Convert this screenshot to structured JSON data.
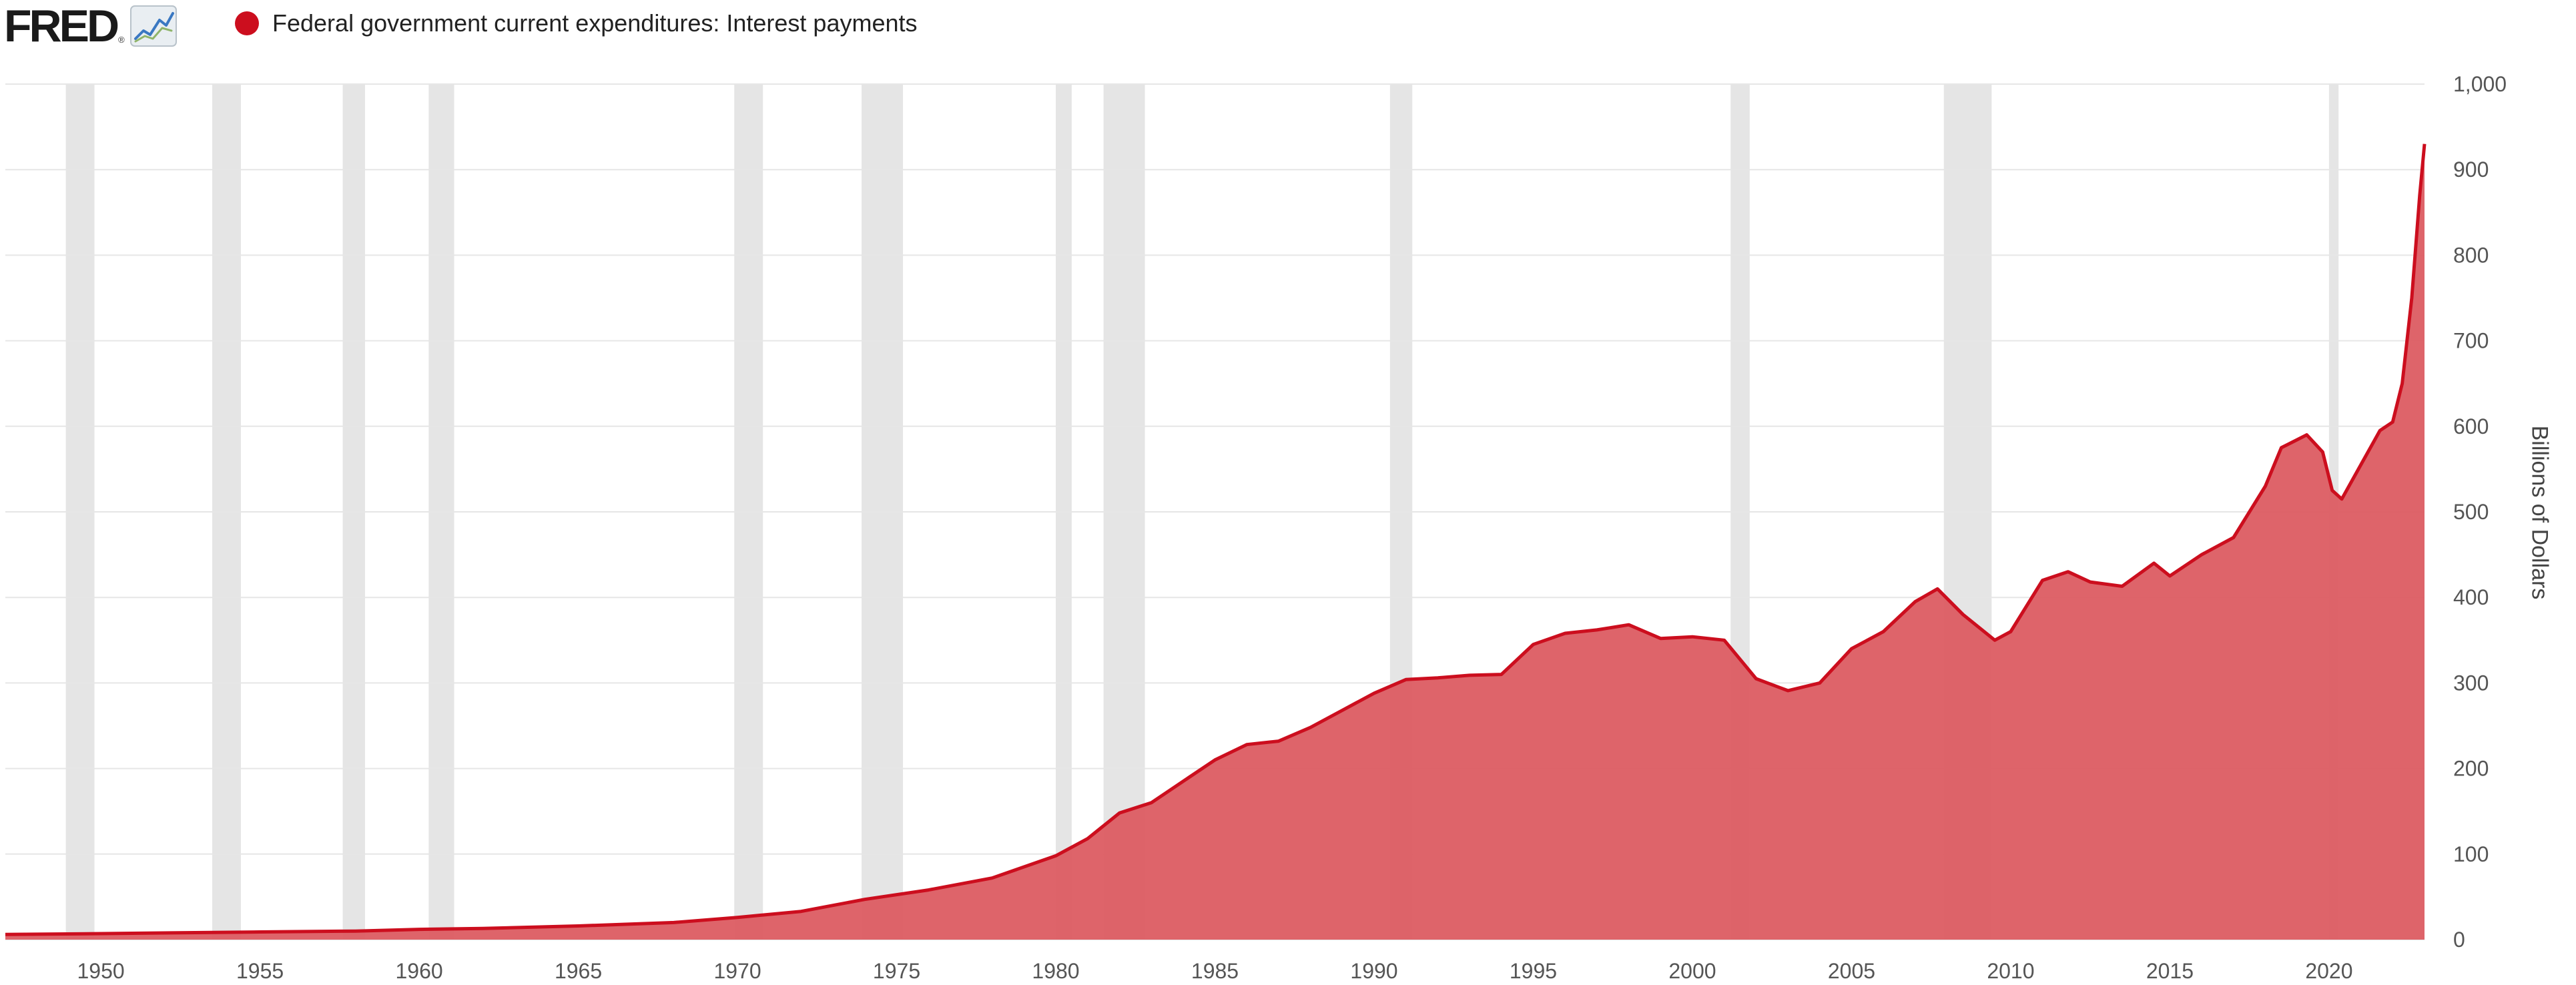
{
  "header": {
    "logo_text": "FRED",
    "logo_reg": "®",
    "logo_icon": "line-chart-icon",
    "legend_label": "Federal government current expenditures: Interest payments"
  },
  "colors": {
    "series": "#cc0e1e",
    "fill": "#dc5c62",
    "recession": "#e5e5e5",
    "grid": "#e6e6e6"
  },
  "chart_data": {
    "type": "area",
    "title": "",
    "xlabel": "",
    "ylabel": "Billions of Dollars",
    "xlim": [
      1947.0,
      2023.0
    ],
    "ylim": [
      0,
      1000
    ],
    "y_ticks": [
      "0",
      "100",
      "200",
      "300",
      "400",
      "500",
      "600",
      "700",
      "800",
      "900",
      "1,000"
    ],
    "y_tick_values": [
      0,
      100,
      200,
      300,
      400,
      500,
      600,
      700,
      800,
      900,
      1000
    ],
    "x_ticks": [
      "1950",
      "1955",
      "1960",
      "1965",
      "1970",
      "1975",
      "1980",
      "1985",
      "1990",
      "1995",
      "2000",
      "2005",
      "2010",
      "2015",
      "2020"
    ],
    "x_tick_values": [
      1950,
      1955,
      1960,
      1965,
      1970,
      1975,
      1980,
      1985,
      1990,
      1995,
      2000,
      2005,
      2010,
      2015,
      2020
    ],
    "grid": true,
    "legend": "top-left",
    "recessions": [
      [
        1948.9,
        1949.8
      ],
      [
        1953.5,
        1954.4
      ],
      [
        1957.6,
        1958.3
      ],
      [
        1960.3,
        1961.1
      ],
      [
        1969.9,
        1970.8
      ],
      [
        1973.9,
        1975.2
      ],
      [
        1980.0,
        1980.5
      ],
      [
        1981.5,
        1982.8
      ],
      [
        1990.5,
        1991.2
      ],
      [
        2001.2,
        2001.8
      ],
      [
        2007.9,
        2009.4
      ],
      [
        2020.0,
        2020.3
      ]
    ],
    "series": [
      {
        "name": "Federal government current expenditures: Interest payments",
        "x": [
          1947.0,
          1950.0,
          1955.0,
          1958.0,
          1960.0,
          1962.0,
          1965.0,
          1968.0,
          1970.0,
          1972.0,
          1974.0,
          1976.0,
          1978.0,
          1980.0,
          1981.0,
          1982.0,
          1983.0,
          1984.0,
          1985.0,
          1986.0,
          1987.0,
          1988.0,
          1989.0,
          1990.0,
          1991.0,
          1992.0,
          1993.0,
          1994.0,
          1995.0,
          1996.0,
          1997.0,
          1998.0,
          1999.0,
          2000.0,
          2001.0,
          2002.0,
          2003.0,
          2004.0,
          2005.0,
          2006.0,
          2007.0,
          2007.7,
          2008.5,
          2009.5,
          2010.0,
          2011.0,
          2011.8,
          2012.5,
          2013.5,
          2014.5,
          2015.0,
          2016.0,
          2017.0,
          2018.0,
          2018.5,
          2019.3,
          2019.8,
          2020.1,
          2020.4,
          2021.0,
          2021.6,
          2022.0,
          2022.3,
          2022.6,
          2022.85,
          2023.0
        ],
        "y": [
          6,
          7,
          9,
          10,
          12,
          13,
          16,
          20,
          26,
          33,
          47,
          58,
          72,
          98,
          118,
          148,
          160,
          185,
          210,
          228,
          232,
          248,
          268,
          288,
          304,
          306,
          309,
          310,
          345,
          358,
          362,
          368,
          352,
          354,
          350,
          305,
          291,
          300,
          340,
          360,
          395,
          410,
          380,
          350,
          360,
          420,
          430,
          418,
          413,
          440,
          425,
          450,
          470,
          530,
          575,
          590,
          570,
          525,
          515,
          555,
          595,
          605,
          650,
          750,
          870,
          930
        ]
      }
    ]
  }
}
